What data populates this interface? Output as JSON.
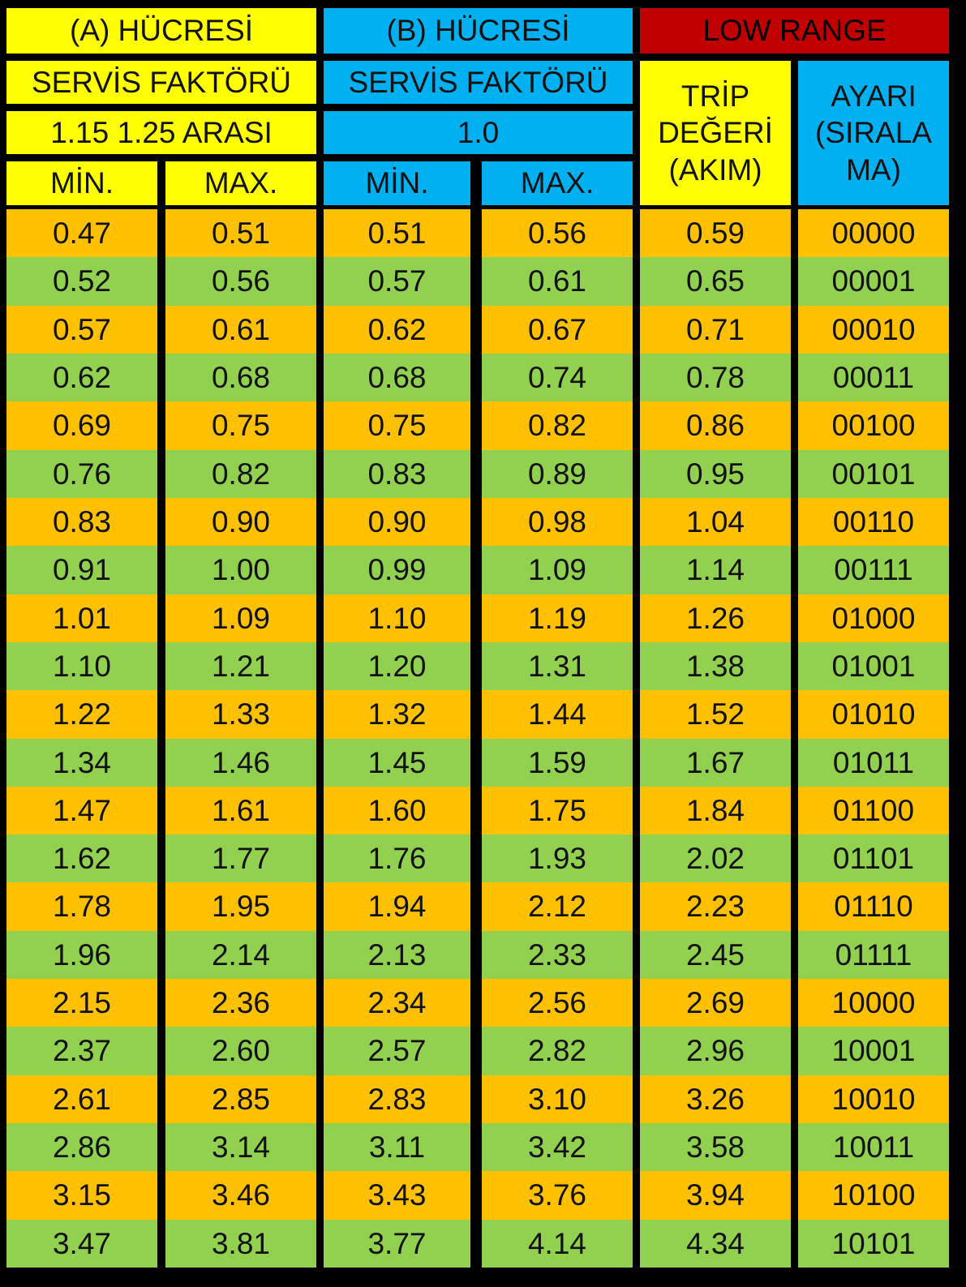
{
  "colors": {
    "yellow": "#FFFF00",
    "blue": "#00B0F0",
    "red": "#C00000",
    "orange": "#FFC000",
    "green": "#92D050",
    "border": "#000000"
  },
  "header": {
    "cell_a_title": "(A) HÜCRESİ",
    "cell_b_title": "(B) HÜCRESİ",
    "low_range_title": "LOW RANGE",
    "cell_a_service_factor_label": "SERVİS FAKTÖRÜ",
    "cell_b_service_factor_label": "SERVİS FAKTÖRÜ",
    "cell_a_service_factor_value": "1.15 1.25 ARASI",
    "cell_b_service_factor_value": "1.0",
    "trip_value_lines": [
      "TRİP",
      "DEĞERİ",
      "(AKIM)"
    ],
    "setting_lines": [
      "AYARI",
      "(SIRALA",
      "MA)"
    ],
    "cell_a_min": "MİN.",
    "cell_a_max": "MAX.",
    "cell_b_min": "MİN.",
    "cell_b_max": "MAX."
  },
  "rows": [
    [
      "0.47",
      "0.51",
      "0.51",
      "0.56",
      "0.59",
      "00000"
    ],
    [
      "0.52",
      "0.56",
      "0.57",
      "0.61",
      "0.65",
      "00001"
    ],
    [
      "0.57",
      "0.61",
      "0.62",
      "0.67",
      "0.71",
      "00010"
    ],
    [
      "0.62",
      "0.68",
      "0.68",
      "0.74",
      "0.78",
      "00011"
    ],
    [
      "0.69",
      "0.75",
      "0.75",
      "0.82",
      "0.86",
      "00100"
    ],
    [
      "0.76",
      "0.82",
      "0.83",
      "0.89",
      "0.95",
      "00101"
    ],
    [
      "0.83",
      "0.90",
      "0.90",
      "0.98",
      "1.04",
      "00110"
    ],
    [
      "0.91",
      "1.00",
      "0.99",
      "1.09",
      "1.14",
      "00111"
    ],
    [
      "1.01",
      "1.09",
      "1.10",
      "1.19",
      "1.26",
      "01000"
    ],
    [
      "1.10",
      "1.21",
      "1.20",
      "1.31",
      "1.38",
      "01001"
    ],
    [
      "1.22",
      "1.33",
      "1.32",
      "1.44",
      "1.52",
      "01010"
    ],
    [
      "1.34",
      "1.46",
      "1.45",
      "1.59",
      "1.67",
      "01011"
    ],
    [
      "1.47",
      "1.61",
      "1.60",
      "1.75",
      "1.84",
      "01100"
    ],
    [
      "1.62",
      "1.77",
      "1.76",
      "1.93",
      "2.02",
      "01101"
    ],
    [
      "1.78",
      "1.95",
      "1.94",
      "2.12",
      "2.23",
      "01110"
    ],
    [
      "1.96",
      "2.14",
      "2.13",
      "2.33",
      "2.45",
      "01111"
    ],
    [
      "2.15",
      "2.36",
      "2.34",
      "2.56",
      "2.69",
      "10000"
    ],
    [
      "2.37",
      "2.60",
      "2.57",
      "2.82",
      "2.96",
      "10001"
    ],
    [
      "2.61",
      "2.85",
      "2.83",
      "3.10",
      "3.26",
      "10010"
    ],
    [
      "2.86",
      "3.14",
      "3.11",
      "3.42",
      "3.58",
      "10011"
    ],
    [
      "3.15",
      "3.46",
      "3.43",
      "3.76",
      "3.94",
      "10100"
    ],
    [
      "3.47",
      "3.81",
      "3.77",
      "4.14",
      "4.34",
      "10101"
    ]
  ]
}
